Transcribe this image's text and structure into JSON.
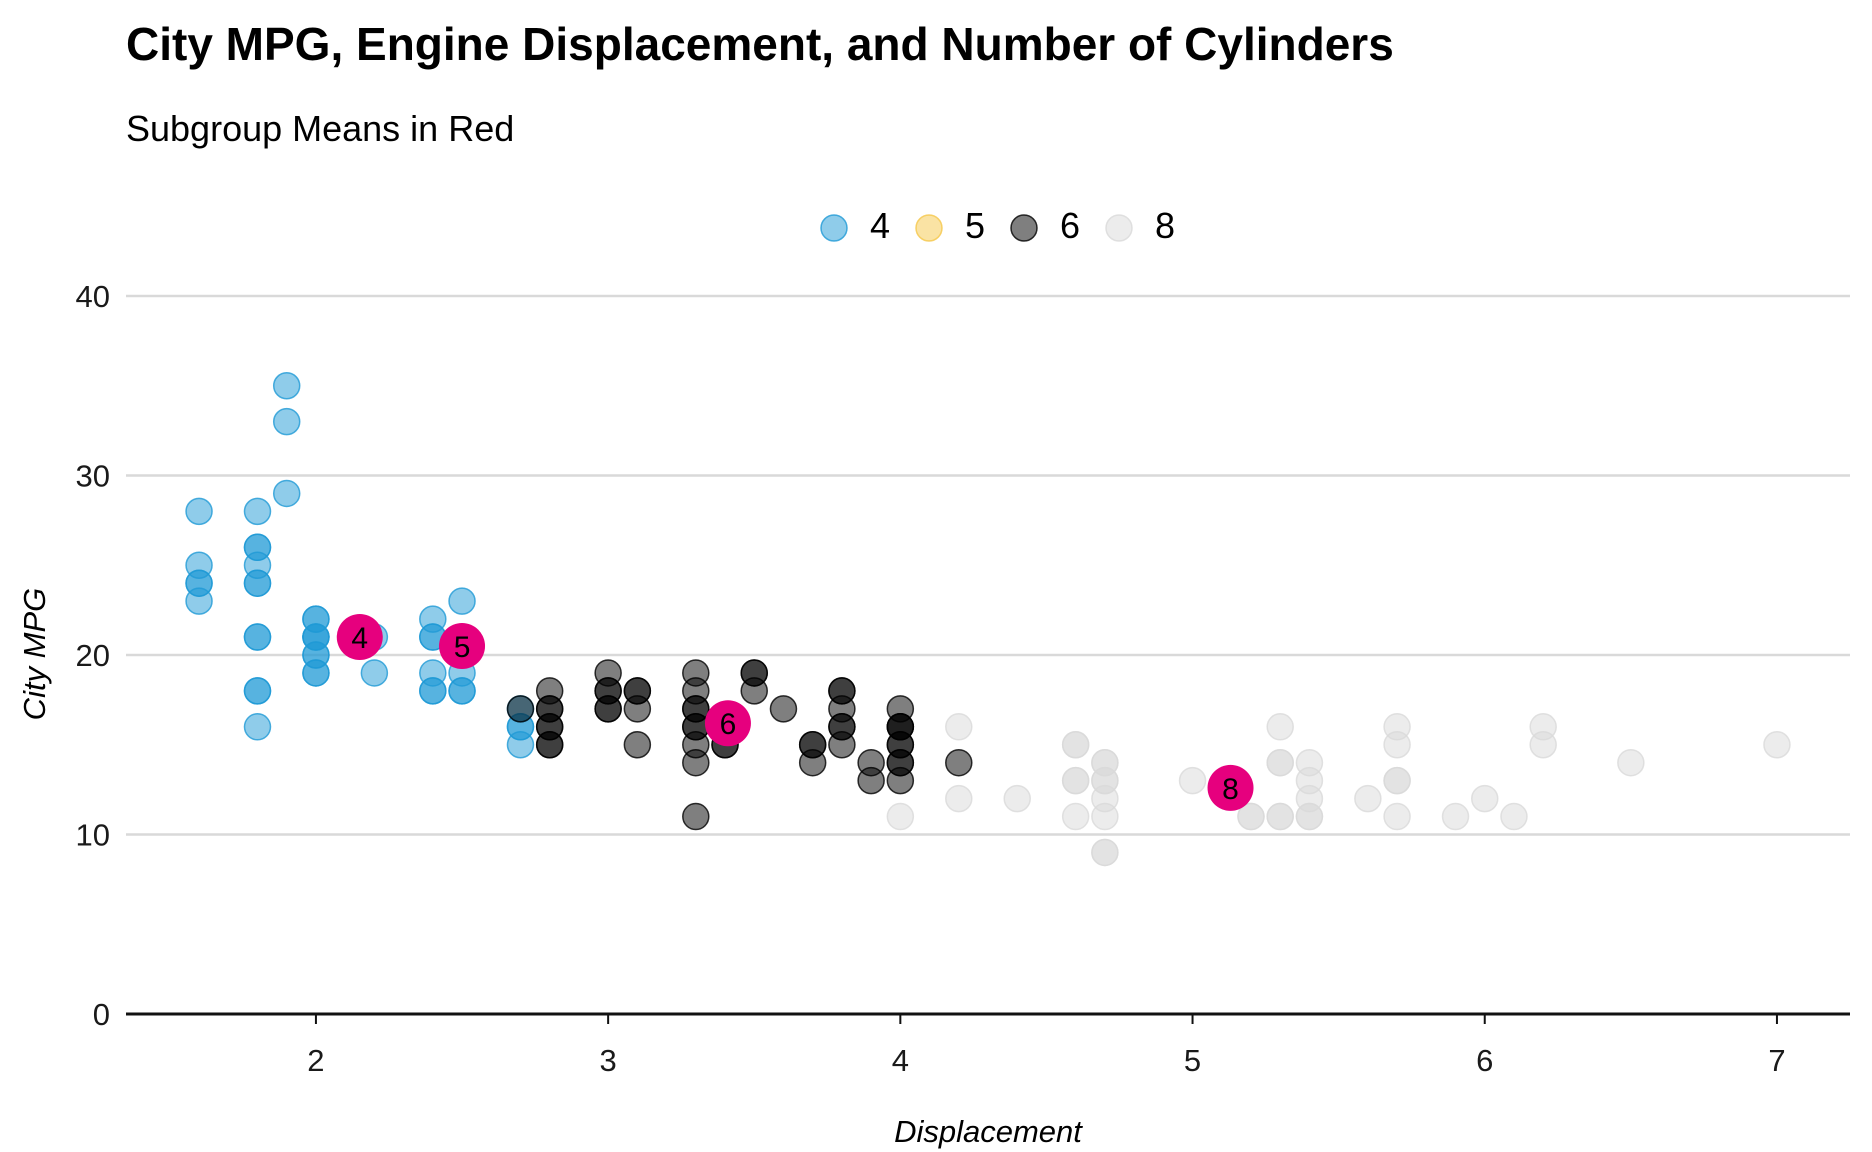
{
  "chart_data": {
    "type": "scatter",
    "title": "City MPG, Engine Displacement, and Number of Cylinders",
    "subtitle": "Subgroup Means in Red",
    "xlabel": "Displacement",
    "ylabel": "City MPG",
    "xlim": [
      1.35,
      7.25
    ],
    "ylim": [
      0,
      40
    ],
    "xticks": [
      "2",
      "3",
      "4",
      "5",
      "6",
      "7"
    ],
    "yticks": [
      "0",
      "10",
      "20",
      "30",
      "40"
    ],
    "legend_position": "top-center",
    "grid": "horizontal",
    "series": [
      {
        "name": "4",
        "color": "#1f9ad6",
        "points": [
          [
            1.6,
            28
          ],
          [
            1.6,
            25
          ],
          [
            1.6,
            24
          ],
          [
            1.6,
            23
          ],
          [
            1.6,
            24
          ],
          [
            1.8,
            28
          ],
          [
            1.8,
            26
          ],
          [
            1.8,
            25
          ],
          [
            1.8,
            24
          ],
          [
            1.8,
            21
          ],
          [
            1.8,
            18
          ],
          [
            1.8,
            16
          ],
          [
            1.8,
            26
          ],
          [
            1.8,
            24
          ],
          [
            1.8,
            21
          ],
          [
            1.8,
            18
          ],
          [
            1.9,
            35
          ],
          [
            1.9,
            33
          ],
          [
            1.9,
            29
          ],
          [
            2.0,
            22
          ],
          [
            2.0,
            21
          ],
          [
            2.0,
            20
          ],
          [
            2.0,
            19
          ],
          [
            2.0,
            21
          ],
          [
            2.0,
            20
          ],
          [
            2.0,
            19
          ],
          [
            2.0,
            22
          ],
          [
            2.0,
            21
          ],
          [
            2.2,
            21
          ],
          [
            2.2,
            19
          ],
          [
            2.4,
            22
          ],
          [
            2.4,
            21
          ],
          [
            2.4,
            19
          ],
          [
            2.4,
            18
          ],
          [
            2.4,
            21
          ],
          [
            2.4,
            18
          ],
          [
            2.5,
            23
          ],
          [
            2.5,
            19
          ],
          [
            2.5,
            18
          ],
          [
            2.5,
            20
          ],
          [
            2.5,
            18
          ],
          [
            2.7,
            17
          ],
          [
            2.7,
            16
          ],
          [
            2.7,
            15
          ],
          [
            2.7,
            16
          ]
        ]
      },
      {
        "name": "5",
        "color": "#f5c74a",
        "points": []
      },
      {
        "name": "6",
        "color": "#000000",
        "points": [
          [
            2.7,
            17
          ],
          [
            2.8,
            18
          ],
          [
            2.8,
            17
          ],
          [
            2.8,
            16
          ],
          [
            2.8,
            15
          ],
          [
            2.8,
            17
          ],
          [
            2.8,
            16
          ],
          [
            2.8,
            15
          ],
          [
            3.0,
            19
          ],
          [
            3.0,
            18
          ],
          [
            3.0,
            17
          ],
          [
            3.0,
            18
          ],
          [
            3.0,
            17
          ],
          [
            3.1,
            18
          ],
          [
            3.1,
            17
          ],
          [
            3.1,
            15
          ],
          [
            3.1,
            18
          ],
          [
            3.3,
            19
          ],
          [
            3.3,
            18
          ],
          [
            3.3,
            17
          ],
          [
            3.3,
            16
          ],
          [
            3.3,
            15
          ],
          [
            3.3,
            14
          ],
          [
            3.3,
            11
          ],
          [
            3.3,
            17
          ],
          [
            3.3,
            16
          ],
          [
            3.4,
            15
          ],
          [
            3.4,
            15
          ],
          [
            3.5,
            19
          ],
          [
            3.5,
            18
          ],
          [
            3.5,
            19
          ],
          [
            3.6,
            17
          ],
          [
            3.7,
            15
          ],
          [
            3.7,
            14
          ],
          [
            3.7,
            15
          ],
          [
            3.8,
            18
          ],
          [
            3.8,
            17
          ],
          [
            3.8,
            16
          ],
          [
            3.8,
            15
          ],
          [
            3.8,
            18
          ],
          [
            3.8,
            16
          ],
          [
            3.9,
            14
          ],
          [
            3.9,
            13
          ],
          [
            4.0,
            17
          ],
          [
            4.0,
            16
          ],
          [
            4.0,
            15
          ],
          [
            4.0,
            14
          ],
          [
            4.0,
            13
          ],
          [
            4.0,
            16
          ],
          [
            4.0,
            15
          ],
          [
            4.0,
            14
          ],
          [
            4.0,
            16
          ],
          [
            4.2,
            14
          ]
        ]
      },
      {
        "name": "8",
        "color": "#d9d9d9",
        "points": [
          [
            4.0,
            11
          ],
          [
            4.2,
            16
          ],
          [
            4.2,
            12
          ],
          [
            4.4,
            12
          ],
          [
            4.6,
            15
          ],
          [
            4.6,
            13
          ],
          [
            4.6,
            11
          ],
          [
            4.6,
            15
          ],
          [
            4.6,
            13
          ],
          [
            4.7,
            14
          ],
          [
            4.7,
            13
          ],
          [
            4.7,
            12
          ],
          [
            4.7,
            11
          ],
          [
            4.7,
            9
          ],
          [
            4.7,
            14
          ],
          [
            4.7,
            13
          ],
          [
            4.7,
            9
          ],
          [
            5.0,
            13
          ],
          [
            5.2,
            11
          ],
          [
            5.2,
            11
          ],
          [
            5.3,
            16
          ],
          [
            5.3,
            14
          ],
          [
            5.3,
            11
          ],
          [
            5.3,
            14
          ],
          [
            5.3,
            11
          ],
          [
            5.4,
            14
          ],
          [
            5.4,
            13
          ],
          [
            5.4,
            12
          ],
          [
            5.4,
            11
          ],
          [
            5.4,
            11
          ],
          [
            5.6,
            12
          ],
          [
            5.7,
            16
          ],
          [
            5.7,
            15
          ],
          [
            5.7,
            13
          ],
          [
            5.7,
            11
          ],
          [
            5.7,
            13
          ],
          [
            5.9,
            11
          ],
          [
            6.0,
            12
          ],
          [
            6.1,
            11
          ],
          [
            6.2,
            16
          ],
          [
            6.2,
            15
          ],
          [
            6.5,
            14
          ],
          [
            7.0,
            15
          ]
        ]
      }
    ],
    "means": [
      {
        "label": "4",
        "x": 2.15,
        "y": 21.0
      },
      {
        "label": "5",
        "x": 2.5,
        "y": 20.5
      },
      {
        "label": "6",
        "x": 3.41,
        "y": 16.2
      },
      {
        "label": "8",
        "x": 5.13,
        "y": 12.6
      }
    ],
    "mean_color": "#e6007e"
  }
}
